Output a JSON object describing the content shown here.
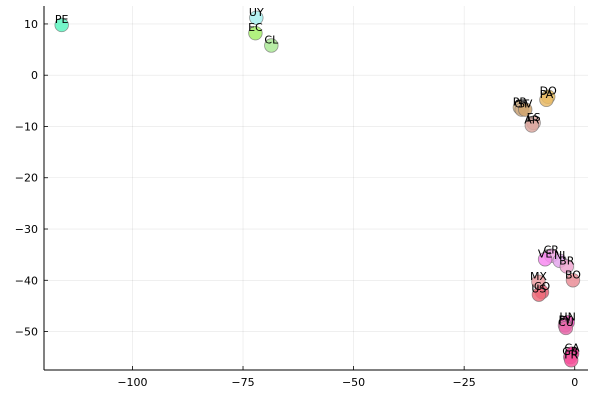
{
  "chart_data": {
    "type": "scatter",
    "title": "",
    "xlabel": "",
    "ylabel": "",
    "xlim": [
      -120,
      3
    ],
    "ylim": [
      -57.5,
      13.5
    ],
    "xticks": [
      -100,
      -75,
      -50,
      -25,
      0
    ],
    "yticks": [
      10,
      0,
      -10,
      -20,
      -30,
      -40,
      -50
    ],
    "xtick_labels": [
      "−100",
      "−75",
      "−50",
      "−25",
      "0"
    ],
    "ytick_labels": [
      "10",
      "0",
      "−10",
      "−20",
      "−30",
      "−40",
      "−50"
    ],
    "grid": true,
    "legend": "none",
    "points": [
      {
        "label": "PE",
        "x": -116.0,
        "y": 9.8,
        "color": "#5cf5c0"
      },
      {
        "label": "UY",
        "x": -72.0,
        "y": 11.2,
        "color": "#a8f0f0"
      },
      {
        "label": "EC",
        "x": -72.2,
        "y": 8.2,
        "color": "#a4ee6a"
      },
      {
        "label": "CL",
        "x": -68.6,
        "y": 5.8,
        "color": "#acea96"
      },
      {
        "label": "DO",
        "x": -6.0,
        "y": -4.2,
        "color": "#f1c35d"
      },
      {
        "label": "PA",
        "x": -6.4,
        "y": -4.8,
        "color": "#e8ba68"
      },
      {
        "label": "PR",
        "x": -12.4,
        "y": -6.3,
        "color": "#dbb886"
      },
      {
        "label": "GT",
        "x": -12.0,
        "y": -6.7,
        "color": "#cfab85"
      },
      {
        "label": "SV",
        "x": -11.2,
        "y": -6.7,
        "color": "#d1a66e"
      },
      {
        "label": "ES",
        "x": -9.3,
        "y": -9.3,
        "color": "#e6aea6"
      },
      {
        "label": "AR",
        "x": -9.7,
        "y": -9.8,
        "color": "#dba8a0"
      },
      {
        "label": "CR",
        "x": -5.3,
        "y": -35.2,
        "color": "#f1a2e6"
      },
      {
        "label": "VE",
        "x": -6.7,
        "y": -35.9,
        "color": "#f78af0"
      },
      {
        "label": "NI",
        "x": -3.4,
        "y": -36.2,
        "color": "#e4a4ec"
      },
      {
        "label": "BR",
        "x": -1.8,
        "y": -37.3,
        "color": "#eea4d0"
      },
      {
        "label": "BO",
        "x": -0.4,
        "y": -40.0,
        "color": "#ea8e98"
      },
      {
        "label": "MX",
        "x": -8.2,
        "y": -40.3,
        "color": "#ec9ca0"
      },
      {
        "label": "CO",
        "x": -7.4,
        "y": -42.3,
        "color": "#e45c72"
      },
      {
        "label": "US",
        "x": -8.1,
        "y": -42.8,
        "color": "#ee6c7a"
      },
      {
        "label": "HN",
        "x": -1.6,
        "y": -48.2,
        "color": "#f04ab8"
      },
      {
        "label": "PY",
        "x": -2.2,
        "y": -48.8,
        "color": "#f26ab8"
      },
      {
        "label": "CU",
        "x": -2.0,
        "y": -49.3,
        "color": "#e86aaa"
      },
      {
        "label": "CA",
        "x": -0.6,
        "y": -54.3,
        "color": "#f41e8c"
      },
      {
        "label": "GB",
        "x": -1.0,
        "y": -55.0,
        "color": "#ef3c94"
      },
      {
        "label": "FR",
        "x": -0.8,
        "y": -55.6,
        "color": "#f6569c"
      }
    ]
  }
}
